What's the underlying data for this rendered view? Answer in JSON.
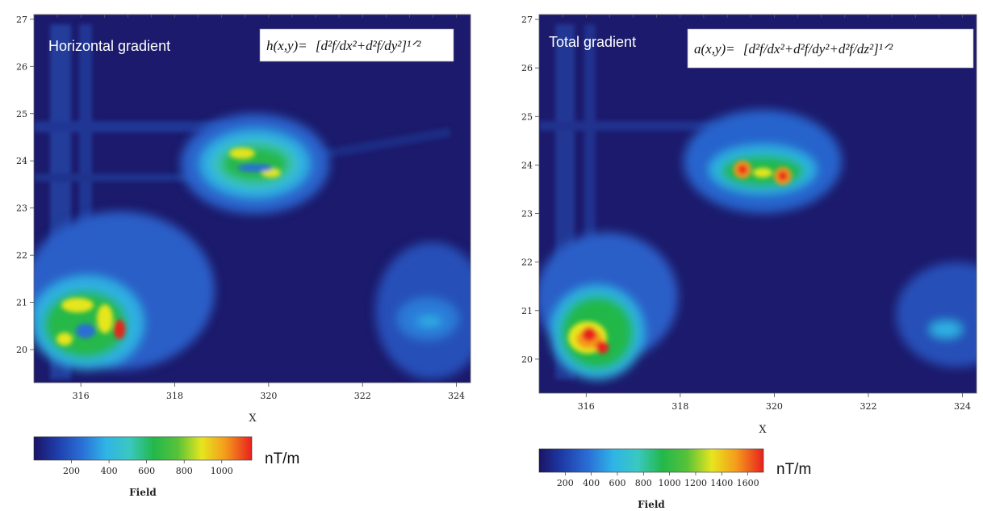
{
  "colors": {
    "colormap": [
      "#1a1466",
      "#1e3aa6",
      "#2a6fd6",
      "#2fb4e6",
      "#3ac8c0",
      "#22b84a",
      "#58c23a",
      "#e6e61e",
      "#f59a1c",
      "#e8201e"
    ]
  },
  "chart_data": [
    {
      "type": "heatmap",
      "title": "Horizontal gradient",
      "formula_lhs": "h(x,y)=",
      "formula_rhs": "[d²f/dx²+d²f/dy²]¹ᐟ²",
      "xlabel": "X",
      "ylabel": "",
      "xlim": [
        315,
        324.3
      ],
      "ylim": [
        19.3,
        27.1
      ],
      "x_ticks": [
        316,
        318,
        320,
        322,
        324
      ],
      "y_ticks": [
        20,
        21,
        22,
        23,
        24,
        25,
        26,
        27
      ],
      "colorbar": {
        "title": "Field",
        "unit": "nT/m",
        "range": [
          0,
          1160
        ],
        "ticks": [
          200,
          400,
          600,
          800,
          1000
        ]
      },
      "anomalies": [
        {
          "x": 319.7,
          "y": 23.85,
          "peak": 900
        },
        {
          "x": 316.3,
          "y": 20.45,
          "peak": 1100
        },
        {
          "x": 323.5,
          "y": 20.6,
          "peak": 420
        }
      ]
    },
    {
      "type": "heatmap",
      "title": "Total gradient",
      "formula_lhs": "a(x,y)=",
      "formula_rhs": "[d²f/dx²+d²f/dy²+d²f/dz²]¹ᐟ²",
      "xlabel": "X",
      "ylabel": "",
      "xlim": [
        315,
        324.3
      ],
      "ylim": [
        19.3,
        27.1
      ],
      "x_ticks": [
        316,
        318,
        320,
        322,
        324
      ],
      "y_ticks": [
        20,
        21,
        22,
        23,
        24,
        25,
        26,
        27
      ],
      "colorbar": {
        "title": "Field",
        "unit": "nT/m",
        "range": [
          0,
          1720
        ],
        "ticks": [
          200,
          400,
          600,
          800,
          1000,
          1200,
          1400,
          1600
        ]
      },
      "anomalies": [
        {
          "x": 319.3,
          "y": 23.9,
          "peak": 1600
        },
        {
          "x": 320.1,
          "y": 23.75,
          "peak": 1550
        },
        {
          "x": 316.1,
          "y": 20.45,
          "peak": 1650
        },
        {
          "x": 316.4,
          "y": 20.2,
          "peak": 1600
        },
        {
          "x": 323.6,
          "y": 20.55,
          "peak": 520
        }
      ]
    }
  ]
}
